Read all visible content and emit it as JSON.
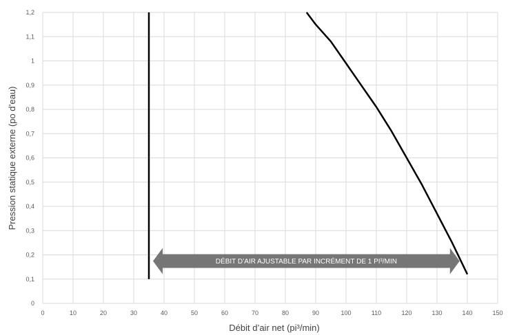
{
  "chart_data": {
    "type": "line",
    "title": "",
    "xlabel": "Débit d’air net (pi³/min)",
    "ylabel": "Pression statique externe (po d’eau)",
    "xlim": [
      0,
      150
    ],
    "ylim": [
      0,
      1.2
    ],
    "x_ticks": [
      0,
      10,
      20,
      30,
      40,
      50,
      60,
      70,
      80,
      90,
      100,
      110,
      120,
      130,
      140,
      150
    ],
    "x_tick_labels": [
      "0",
      "10",
      "20",
      "30",
      "40",
      "50",
      "60",
      "70",
      "80",
      "90",
      "100",
      "110",
      "120",
      "130",
      "140",
      "150"
    ],
    "y_ticks": [
      0,
      0.1,
      0.2,
      0.3,
      0.4,
      0.5,
      0.6,
      0.7,
      0.8,
      0.9,
      1.0,
      1.1,
      1.2
    ],
    "y_tick_labels": [
      "0",
      "0,1",
      "0,2",
      "0,3",
      "0,4",
      "0,5",
      "0,6",
      "0,7",
      "0,8",
      "0,9",
      "1",
      "1,1",
      "1,2"
    ],
    "grid": true,
    "series": [
      {
        "color": "#000000",
        "x": [
          35,
          35
        ],
        "y": [
          0.1,
          1.2
        ]
      },
      {
        "color": "#000000",
        "x": [
          87,
          90,
          95,
          100,
          105,
          110,
          115,
          120,
          125,
          130,
          135,
          140
        ],
        "y": [
          1.2,
          1.15,
          1.08,
          0.99,
          0.9,
          0.81,
          0.71,
          0.6,
          0.49,
          0.37,
          0.25,
          0.12
        ]
      }
    ],
    "annotations": [
      {
        "type": "double-arrow",
        "text": "DÉBIT D’AIR AJUSTABLE PAR INCRÉMENT DE 1 PI³/MIN",
        "x_range": [
          35,
          137
        ],
        "y": 0.18,
        "color": "#767676"
      }
    ]
  }
}
